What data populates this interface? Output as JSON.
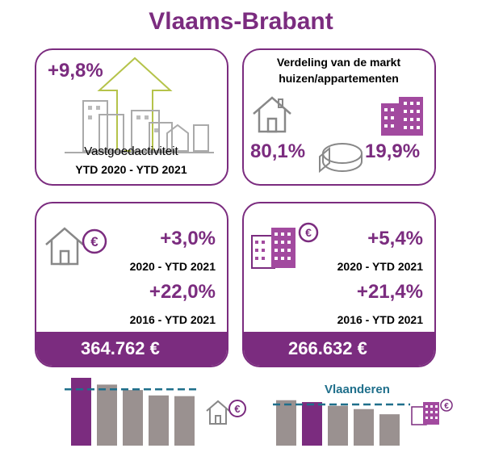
{
  "title": "Vlaams-Brabant",
  "card_activity": {
    "change": "+9,8%",
    "label": "Vastgoedactiviteit",
    "period": "YTD 2020 - YTD 2021"
  },
  "card_market": {
    "title_line1": "Verdeling van de markt",
    "title_line2": "huizen/appartementen",
    "houses_share": "80,1%",
    "apartments_share": "19,9%"
  },
  "card_houses": {
    "change1": "+3,0%",
    "period1": "2020 - YTD 2021",
    "change2": "+22,0%",
    "period2": "2016 - YTD 2021",
    "price": "364.762 €"
  },
  "card_apartments": {
    "change1": "+5,4%",
    "period1": "2020 - YTD 2021",
    "change2": "+21,4%",
    "period2": "2016 - YTD 2021",
    "price": "266.632 €"
  },
  "reference_label": "Vlaanderen",
  "colors": {
    "accent": "#7b2c7f",
    "bar_grey": "#9a9190",
    "reference_line": "#1f6f8b",
    "arrow": "#b5c34a"
  },
  "chart_data": [
    {
      "type": "bar",
      "subject": "houses",
      "values": [
        1.0,
        0.9,
        0.82,
        0.74,
        0.73
      ],
      "highlight_index": 0,
      "reference": 0.83
    },
    {
      "type": "bar",
      "subject": "apartments",
      "values": [
        0.97,
        0.93,
        0.85,
        0.78,
        0.67
      ],
      "highlight_index": 1,
      "reference": 0.88
    }
  ]
}
